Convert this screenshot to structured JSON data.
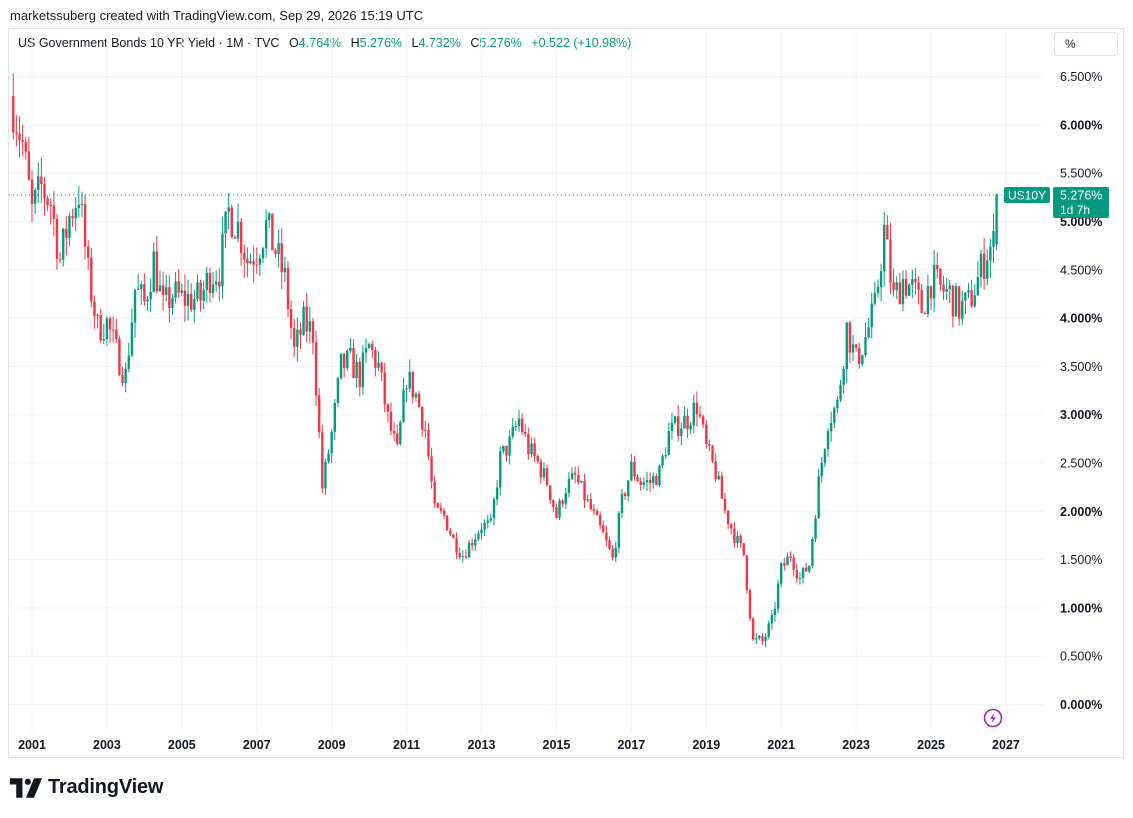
{
  "header": {
    "text": "marketssuberg created with TradingView.com, Sep 29, 2026 15:19 UTC"
  },
  "legend": {
    "title": "US Government Bonds 10 YR Yield · 1M · TVC",
    "o_label": "O",
    "o_value": "4.764%",
    "h_label": "H",
    "h_value": "5.276%",
    "l_label": "L",
    "l_value": "4.732%",
    "c_label": "C",
    "c_value": "5.276%",
    "change": "+0.522 (+10.98%)"
  },
  "scale_button": "%",
  "price_tag": {
    "symbol": "US10Y",
    "value": "5.276%",
    "countdown": "1d 7h"
  },
  "brand": {
    "name": "TradingView"
  },
  "colors": {
    "up": "#089981",
    "down": "#f23645",
    "grid": "#f0f3fa",
    "axis_text": "#131722",
    "lightning": "#9c27b0"
  },
  "icons": {
    "lightning": "lightning-icon",
    "logo": "tradingview-logo-icon"
  },
  "chart_data": {
    "type": "candlestick",
    "interval": "1M",
    "y_unit": "%",
    "ylim": [
      -0.5,
      7.0
    ],
    "xlim": [
      2000.5,
      2027.6
    ],
    "y_ticks": [
      0.0,
      0.5,
      1.0,
      1.5,
      2.0,
      2.5,
      3.0,
      3.5,
      4.0,
      4.5,
      5.0,
      5.5,
      6.0,
      6.5
    ],
    "y_tick_labels": [
      "0.000%",
      "0.500%",
      "1.000%",
      "1.500%",
      "2.000%",
      "2.500%",
      "3.000%",
      "3.500%",
      "4.000%",
      "4.500%",
      "5.000%",
      "5.500%",
      "6.000%",
      "6.500%"
    ],
    "x_ticks": [
      2001,
      2003,
      2005,
      2007,
      2009,
      2011,
      2013,
      2015,
      2017,
      2019,
      2021,
      2023,
      2025,
      2027
    ],
    "x_tick_labels": [
      "2001",
      "2003",
      "2005",
      "2007",
      "2009",
      "2011",
      "2013",
      "2015",
      "2017",
      "2019",
      "2021",
      "2023",
      "2025",
      "2027"
    ],
    "last_close": 5.276,
    "grid": true,
    "close_series": [
      [
        2000.5,
        6.2
      ],
      [
        2000.75,
        5.8
      ],
      [
        2001.0,
        5.1
      ],
      [
        2001.25,
        5.35
      ],
      [
        2001.5,
        5.2
      ],
      [
        2001.75,
        4.6
      ],
      [
        2002.0,
        5.05
      ],
      [
        2002.25,
        5.3
      ],
      [
        2002.5,
        4.45
      ],
      [
        2002.75,
        3.9
      ],
      [
        2003.0,
        3.95
      ],
      [
        2003.25,
        3.65
      ],
      [
        2003.5,
        3.4
      ],
      [
        2003.75,
        4.3
      ],
      [
        2004.0,
        4.15
      ],
      [
        2004.25,
        4.6
      ],
      [
        2004.5,
        4.1
      ],
      [
        2004.75,
        4.25
      ],
      [
        2005.0,
        4.2
      ],
      [
        2005.25,
        4.2
      ],
      [
        2005.5,
        4.2
      ],
      [
        2005.75,
        4.45
      ],
      [
        2006.0,
        4.5
      ],
      [
        2006.25,
        5.1
      ],
      [
        2006.5,
        4.95
      ],
      [
        2006.75,
        4.6
      ],
      [
        2007.0,
        4.7
      ],
      [
        2007.25,
        4.95
      ],
      [
        2007.5,
        4.7
      ],
      [
        2007.75,
        4.4
      ],
      [
        2008.0,
        3.65
      ],
      [
        2008.25,
        3.95
      ],
      [
        2008.5,
        3.85
      ],
      [
        2008.75,
        2.25
      ],
      [
        2009.0,
        2.8
      ],
      [
        2009.25,
        3.5
      ],
      [
        2009.5,
        3.55
      ],
      [
        2009.75,
        3.4
      ],
      [
        2010.0,
        3.7
      ],
      [
        2010.25,
        3.5
      ],
      [
        2010.5,
        2.95
      ],
      [
        2010.75,
        2.6
      ],
      [
        2011.0,
        3.4
      ],
      [
        2011.25,
        3.2
      ],
      [
        2011.5,
        2.85
      ],
      [
        2011.75,
        2.0
      ],
      [
        2012.0,
        1.95
      ],
      [
        2012.25,
        1.7
      ],
      [
        2012.5,
        1.55
      ],
      [
        2012.75,
        1.7
      ],
      [
        2013.0,
        1.85
      ],
      [
        2013.25,
        1.85
      ],
      [
        2013.5,
        2.55
      ],
      [
        2013.75,
        2.7
      ],
      [
        2014.0,
        2.95
      ],
      [
        2014.25,
        2.65
      ],
      [
        2014.5,
        2.5
      ],
      [
        2014.75,
        2.3
      ],
      [
        2015.0,
        1.95
      ],
      [
        2015.25,
        2.25
      ],
      [
        2015.5,
        2.35
      ],
      [
        2015.75,
        2.15
      ],
      [
        2016.0,
        1.95
      ],
      [
        2016.25,
        1.75
      ],
      [
        2016.5,
        1.5
      ],
      [
        2016.75,
        2.1
      ],
      [
        2017.0,
        2.45
      ],
      [
        2017.25,
        2.3
      ],
      [
        2017.5,
        2.3
      ],
      [
        2017.75,
        2.4
      ],
      [
        2018.0,
        2.8
      ],
      [
        2018.25,
        2.9
      ],
      [
        2018.5,
        2.95
      ],
      [
        2018.75,
        3.1
      ],
      [
        2019.0,
        2.65
      ],
      [
        2019.25,
        2.4
      ],
      [
        2019.5,
        2.0
      ],
      [
        2019.75,
        1.75
      ],
      [
        2020.0,
        1.55
      ],
      [
        2020.25,
        0.65
      ],
      [
        2020.5,
        0.65
      ],
      [
        2020.75,
        0.85
      ],
      [
        2021.0,
        1.4
      ],
      [
        2021.25,
        1.55
      ],
      [
        2021.5,
        1.3
      ],
      [
        2021.75,
        1.45
      ],
      [
        2022.0,
        2.3
      ],
      [
        2022.25,
        2.95
      ],
      [
        2022.5,
        3.1
      ],
      [
        2022.75,
        3.9
      ],
      [
        2023.0,
        3.55
      ],
      [
        2023.25,
        3.8
      ],
      [
        2023.5,
        4.1
      ],
      [
        2023.75,
        4.9
      ],
      [
        2024.0,
        4.2
      ],
      [
        2024.25,
        4.4
      ],
      [
        2024.5,
        4.3
      ],
      [
        2024.75,
        4.1
      ],
      [
        2025.0,
        4.4
      ],
      [
        2025.25,
        4.3
      ],
      [
        2025.5,
        4.25
      ],
      [
        2025.75,
        4.1
      ],
      [
        2026.0,
        4.15
      ],
      [
        2026.25,
        4.4
      ],
      [
        2026.5,
        4.7
      ],
      [
        2026.667,
        4.764
      ],
      [
        2026.75,
        5.276
      ]
    ]
  }
}
